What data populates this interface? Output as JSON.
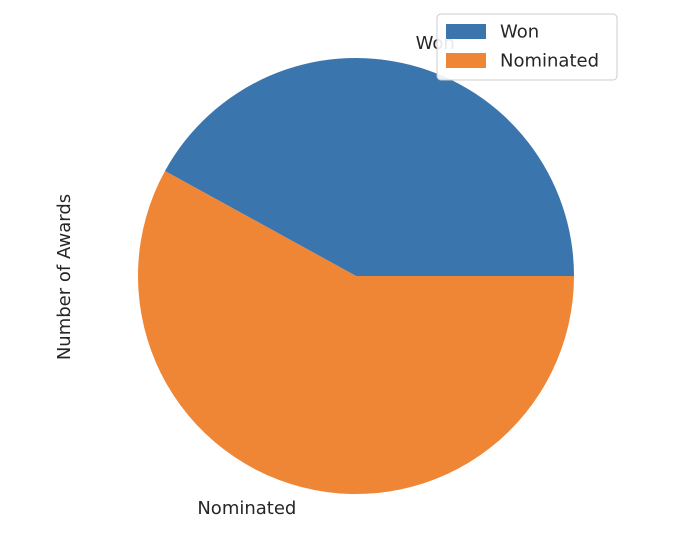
{
  "chart_data": {
    "type": "pie",
    "ylabel": "Number of Awards",
    "categories": [
      "Won",
      "Nominated"
    ],
    "values": [
      42,
      58
    ],
    "colors": [
      "#3a75ae",
      "#ee8636"
    ],
    "legend": {
      "placement": "top-right",
      "entries": [
        "Won",
        "Nominated"
      ]
    }
  }
}
